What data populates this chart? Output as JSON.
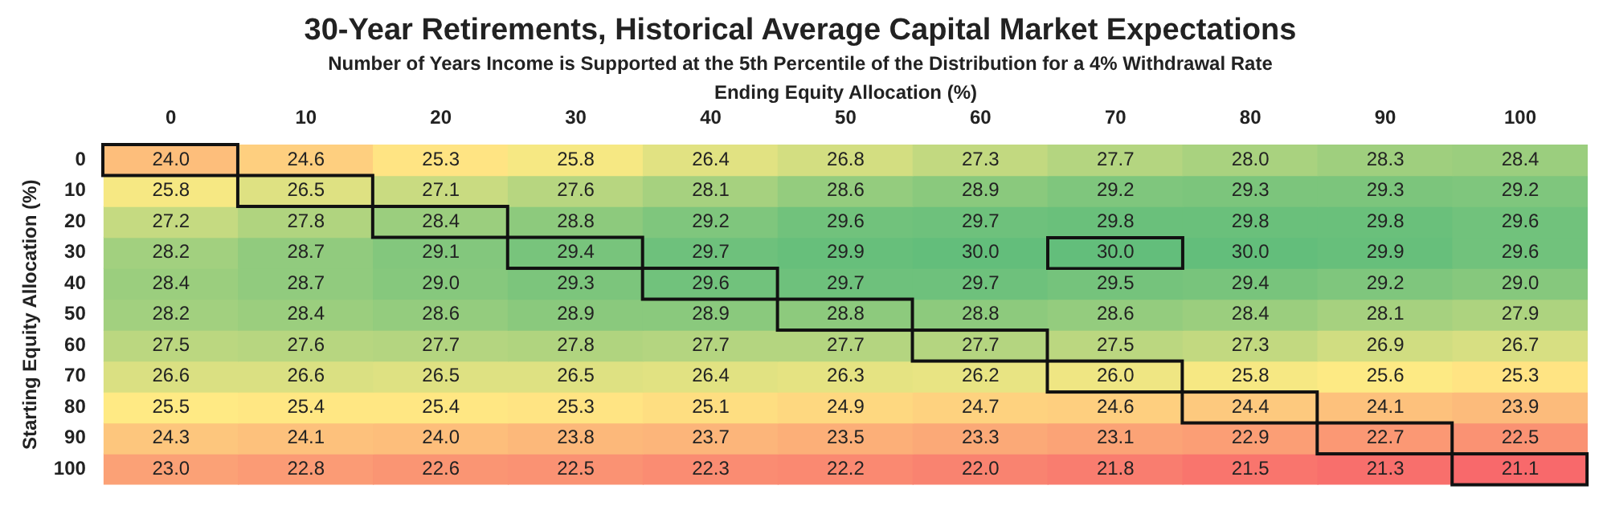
{
  "chart_data": {
    "type": "heatmap",
    "title": "30-Year Retirements, Historical Average Capital Market Expectations",
    "subtitle": "Number of Years Income is Supported at the 5th Percentile of the Distribution for a 4% Withdrawal Rate",
    "xlabel": "Ending Equity Allocation (%)",
    "ylabel": "Starting Equity Allocation (%)",
    "categories": [
      "0",
      "10",
      "20",
      "30",
      "40",
      "50",
      "60",
      "70",
      "80",
      "90",
      "100"
    ],
    "y_categories": [
      "0",
      "10",
      "20",
      "30",
      "40",
      "50",
      "60",
      "70",
      "80",
      "90",
      "100"
    ],
    "cells": [
      [
        24.0,
        24.6,
        25.3,
        25.8,
        26.4,
        26.8,
        27.3,
        27.7,
        28.0,
        28.3,
        28.4
      ],
      [
        25.8,
        26.5,
        27.1,
        27.6,
        28.1,
        28.6,
        28.9,
        29.2,
        29.3,
        29.3,
        29.2
      ],
      [
        27.2,
        27.8,
        28.4,
        28.8,
        29.2,
        29.6,
        29.7,
        29.8,
        29.8,
        29.8,
        29.6
      ],
      [
        28.2,
        28.7,
        29.1,
        29.4,
        29.7,
        29.9,
        30.0,
        30.0,
        30.0,
        29.9,
        29.6
      ],
      [
        28.4,
        28.7,
        29.0,
        29.3,
        29.6,
        29.7,
        29.7,
        29.5,
        29.4,
        29.2,
        29.0
      ],
      [
        28.2,
        28.4,
        28.6,
        28.9,
        28.9,
        28.8,
        28.8,
        28.6,
        28.4,
        28.1,
        27.9
      ],
      [
        27.5,
        27.6,
        27.7,
        27.8,
        27.7,
        27.7,
        27.7,
        27.5,
        27.3,
        26.9,
        26.7
      ],
      [
        26.6,
        26.6,
        26.5,
        26.5,
        26.4,
        26.3,
        26.2,
        26.0,
        25.8,
        25.6,
        25.3
      ],
      [
        25.5,
        25.4,
        25.4,
        25.3,
        25.1,
        24.9,
        24.7,
        24.6,
        24.4,
        24.1,
        23.9
      ],
      [
        24.3,
        24.1,
        24.0,
        23.8,
        23.7,
        23.5,
        23.3,
        23.1,
        22.9,
        22.7,
        22.5
      ],
      [
        23.0,
        22.8,
        22.6,
        22.5,
        22.3,
        22.2,
        22.0,
        21.8,
        21.5,
        21.3,
        21.1
      ]
    ],
    "cell_labels": [
      [
        "24.0",
        "24.6",
        "25.3",
        "25.8",
        "26.4",
        "26.8",
        "27.3",
        "27.7",
        "28.0",
        "28.3",
        "28.4"
      ],
      [
        "25.8",
        "26.5",
        "27.1",
        "27.6",
        "28.1",
        "28.6",
        "28.9",
        "29.2",
        "29.3",
        "29.3",
        "29.2"
      ],
      [
        "27.2",
        "27.8",
        "28.4",
        "28.8",
        "29.2",
        "29.6",
        "29.7",
        "29.8",
        "29.8",
        "29.8",
        "29.6"
      ],
      [
        "28.2",
        "28.7",
        "29.1",
        "29.4",
        "29.7",
        "29.9",
        "30.0",
        "30.0",
        "30.0",
        "29.9",
        "29.6"
      ],
      [
        "28.4",
        "28.7",
        "29.0",
        "29.3",
        "29.6",
        "29.7",
        "29.7",
        "29.5",
        "29.4",
        "29.2",
        "29.0"
      ],
      [
        "28.2",
        "28.4",
        "28.6",
        "28.9",
        "28.9",
        "28.8",
        "28.8",
        "28.6",
        "28.4",
        "28.1",
        "27.9"
      ],
      [
        "27.5",
        "27.6",
        "27.7",
        "27.8",
        "27.7",
        "27.7",
        "27.7",
        "27.5",
        "27.3",
        "26.9",
        "26.7"
      ],
      [
        "26.6",
        "26.6",
        "26.5",
        "26.5",
        "26.4",
        "26.3",
        "26.2",
        "26.0",
        "25.8",
        "25.6",
        "25.3"
      ],
      [
        "25.5",
        "25.4",
        "25.4",
        "25.3",
        "25.1",
        "24.9",
        "24.7",
        "24.6",
        "24.4",
        "24.1",
        "23.9"
      ],
      [
        "24.3",
        "24.1",
        "24.0",
        "23.8",
        "23.7",
        "23.5",
        "23.3",
        "23.1",
        "22.9",
        "22.7",
        "22.5"
      ],
      [
        "23.0",
        "22.8",
        "22.6",
        "22.5",
        "22.3",
        "22.2",
        "22.0",
        "21.8",
        "21.5",
        "21.3",
        "21.1"
      ]
    ]
  }
}
